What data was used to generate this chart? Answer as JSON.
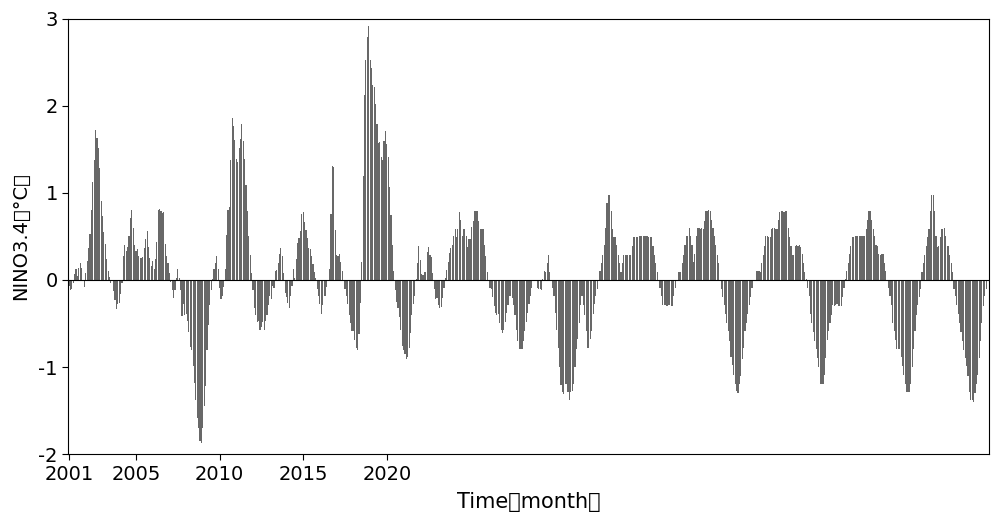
{
  "bar_color": "#686868",
  "ylim": [
    -2,
    3
  ],
  "yticks": [
    -2,
    -1,
    0,
    1,
    2,
    3
  ],
  "xticks": [
    2001,
    2005,
    2010,
    2015,
    2020
  ],
  "xlabel": "Time（month）",
  "ylabel": "NINO3.4（°C）",
  "start_year": 2001,
  "start_month": 1,
  "values": [
    -0.07,
    -0.11,
    -0.1,
    -0.04,
    0.07,
    0.13,
    0.04,
    0.14,
    0.19,
    0.14,
    0.0,
    -0.08,
    0.08,
    0.22,
    0.37,
    0.53,
    0.8,
    1.12,
    1.38,
    1.72,
    1.63,
    1.51,
    1.29,
    0.91,
    0.73,
    0.55,
    0.41,
    0.24,
    0.1,
    0.03,
    -0.03,
    -0.01,
    -0.13,
    -0.23,
    -0.33,
    -0.28,
    -0.27,
    -0.16,
    -0.03,
    0.28,
    0.4,
    0.33,
    0.38,
    0.51,
    0.71,
    0.8,
    0.6,
    0.4,
    0.33,
    0.36,
    0.28,
    0.25,
    0.25,
    0.26,
    0.37,
    0.47,
    0.56,
    0.38,
    0.25,
    0.16,
    0.22,
    0.12,
    0.24,
    0.44,
    0.8,
    0.82,
    0.79,
    0.77,
    0.78,
    0.41,
    0.27,
    0.2,
    0.08,
    -0.02,
    -0.12,
    -0.21,
    -0.11,
    0.02,
    0.12,
    0.02,
    -0.11,
    -0.41,
    -0.28,
    -0.4,
    -0.39,
    -0.47,
    -0.6,
    -0.77,
    -0.8,
    -0.99,
    -1.18,
    -1.38,
    -1.58,
    -1.7,
    -1.85,
    -1.87,
    -1.7,
    -1.45,
    -1.22,
    -0.81,
    -0.52,
    -0.29,
    -0.11,
    0.01,
    0.12,
    0.19,
    0.28,
    0.13,
    -0.09,
    -0.22,
    -0.18,
    -0.08,
    0.12,
    0.52,
    0.8,
    0.84,
    1.38,
    1.86,
    1.77,
    1.61,
    1.39,
    1.35,
    1.51,
    1.62,
    1.79,
    1.6,
    1.39,
    1.09,
    0.79,
    0.51,
    0.29,
    0.08,
    -0.12,
    -0.32,
    -0.4,
    -0.48,
    -0.47,
    -0.58,
    -0.54,
    -0.48,
    -0.58,
    -0.47,
    -0.4,
    -0.29,
    -0.19,
    -0.22,
    -0.07,
    -0.09,
    0.1,
    0.11,
    0.2,
    0.3,
    0.37,
    0.28,
    0.08,
    -0.15,
    -0.2,
    -0.27,
    -0.32,
    -0.19,
    -0.07,
    0.13,
    0.02,
    0.24,
    0.42,
    0.48,
    0.56,
    0.76,
    0.78,
    0.66,
    0.57,
    0.48,
    0.37,
    0.36,
    0.27,
    0.18,
    0.09,
    0.02,
    -0.1,
    -0.18,
    -0.28,
    -0.39,
    -0.29,
    -0.18,
    -0.18,
    -0.08,
    0.0,
    0.12,
    0.76,
    1.31,
    1.3,
    0.57,
    0.29,
    0.28,
    0.3,
    0.21,
    0.1,
    0.0,
    -0.1,
    -0.19,
    -0.28,
    -0.4,
    -0.5,
    -0.59,
    -0.59,
    -0.69,
    -0.78,
    -0.81,
    -0.62,
    -0.27,
    0.21,
    1.19,
    2.12,
    2.52,
    2.79,
    2.91,
    2.53,
    2.43,
    2.24,
    2.21,
    2.02,
    1.79,
    1.57,
    1.58,
    1.41,
    1.38,
    1.6,
    1.71,
    1.56,
    1.41,
    1.07,
    0.74,
    0.4,
    0.1,
    -0.11,
    -0.25,
    -0.32,
    -0.42,
    -0.57,
    -0.76,
    -0.8,
    -0.85,
    -0.91,
    -0.89,
    -0.78,
    -0.61,
    -0.4,
    -0.28,
    -0.19,
    0.01,
    0.2,
    0.39,
    0.23,
    0.07,
    0.06,
    0.09,
    0.09,
    0.32,
    0.38,
    0.29,
    0.26,
    0.08,
    -0.1,
    -0.22,
    -0.21,
    -0.29,
    -0.32,
    -0.31,
    -0.21,
    -0.09,
    0.02,
    0.11,
    0.21,
    0.31,
    0.37,
    0.4,
    0.5,
    0.59,
    0.49,
    0.59,
    0.78,
    0.69,
    0.5,
    0.59,
    0.59,
    0.51,
    0.38,
    0.47,
    0.47,
    0.61,
    0.68,
    0.79,
    0.79,
    0.79,
    0.68,
    0.58,
    0.59,
    0.59,
    0.4,
    0.28,
    0.09,
    0.0,
    -0.09,
    -0.1,
    -0.2,
    -0.3,
    -0.38,
    -0.4,
    -0.39,
    -0.5,
    -0.58,
    -0.61,
    -0.58,
    -0.48,
    -0.38,
    -0.29,
    -0.19,
    -0.19,
    -0.21,
    -0.29,
    -0.4,
    -0.57,
    -0.7,
    -0.79,
    -0.79,
    -0.79,
    -0.7,
    -0.59,
    -0.48,
    -0.38,
    -0.28,
    -0.18,
    -0.09,
    0.0,
    0.0,
    0.0,
    -0.09,
    -0.1,
    -0.1,
    -0.11,
    0.01,
    0.1,
    0.09,
    0.19,
    0.29,
    0.09,
    0.0,
    -0.09,
    -0.19,
    -0.38,
    -0.58,
    -0.78,
    -1.0,
    -1.21,
    -1.29,
    -1.31,
    -1.19,
    -1.19,
    -1.29,
    -1.38,
    -1.29,
    -1.28,
    -1.19,
    -1.0,
    -0.79,
    -0.68,
    -0.5,
    -0.29,
    -0.19,
    -0.29,
    -0.4,
    -0.59,
    -0.78,
    -0.78,
    -0.68,
    -0.59,
    -0.39,
    -0.28,
    -0.19,
    -0.1,
    0.0,
    0.1,
    0.2,
    0.29,
    0.4,
    0.6,
    0.88,
    0.98,
    0.98,
    0.79,
    0.59,
    0.49,
    0.49,
    0.4,
    0.29,
    0.19,
    0.09,
    0.2,
    0.29,
    0.29,
    0.29,
    0.29,
    0.29,
    0.29,
    0.39,
    0.49,
    0.49,
    0.49,
    0.49,
    0.5,
    0.51,
    0.5,
    0.5,
    0.5,
    0.5,
    0.5,
    0.49,
    0.49,
    0.49,
    0.39,
    0.29,
    0.2,
    0.09,
    0.0,
    -0.09,
    -0.19,
    -0.29,
    -0.29,
    -0.29,
    -0.3,
    -0.29,
    -0.29,
    -0.3,
    -0.3,
    -0.19,
    -0.09,
    0.0,
    0.09,
    0.09,
    0.09,
    0.19,
    0.29,
    0.4,
    0.5,
    0.5,
    0.6,
    0.5,
    0.4,
    0.21,
    0.3,
    0.5,
    0.6,
    0.6,
    0.59,
    0.6,
    0.59,
    0.68,
    0.79,
    0.79,
    0.8,
    0.79,
    0.69,
    0.6,
    0.5,
    0.4,
    0.29,
    0.19,
    0.0,
    -0.1,
    -0.2,
    -0.29,
    -0.39,
    -0.5,
    -0.59,
    -0.7,
    -0.89,
    -0.98,
    -1.09,
    -1.19,
    -1.28,
    -1.3,
    -1.2,
    -1.1,
    -0.91,
    -0.78,
    -0.59,
    -0.49,
    -0.39,
    -0.29,
    -0.2,
    -0.09,
    0.0,
    0.0,
    0.1,
    0.1,
    0.1,
    0.09,
    0.19,
    0.29,
    0.39,
    0.5,
    0.5,
    0.49,
    0.49,
    0.59,
    0.6,
    0.6,
    0.59,
    0.59,
    0.69,
    0.78,
    0.79,
    0.79,
    0.78,
    0.79,
    0.79,
    0.6,
    0.49,
    0.39,
    0.29,
    0.29,
    0.39,
    0.4,
    0.39,
    0.4,
    0.38,
    0.3,
    0.19,
    0.09,
    0.01,
    -0.09,
    -0.19,
    -0.39,
    -0.49,
    -0.6,
    -0.7,
    -0.79,
    -0.9,
    -1.0,
    -1.19,
    -1.19,
    -1.19,
    -1.09,
    -0.9,
    -0.69,
    -0.59,
    -0.49,
    -0.4,
    -0.29,
    -0.3,
    -0.29,
    -0.28,
    -0.3,
    -0.3,
    -0.3,
    -0.2,
    -0.09,
    0.01,
    0.1,
    0.19,
    0.3,
    0.39,
    0.49,
    0.49,
    0.5,
    0.5,
    0.51,
    0.5,
    0.5,
    0.51,
    0.51,
    0.51,
    0.59,
    0.69,
    0.79,
    0.79,
    0.69,
    0.59,
    0.5,
    0.4,
    0.39,
    0.3,
    0.29,
    0.3,
    0.3,
    0.19,
    0.1,
    0.0,
    -0.09,
    -0.19,
    -0.29,
    -0.5,
    -0.59,
    -0.69,
    -0.79,
    -0.79,
    -0.79,
    -0.89,
    -0.99,
    -1.09,
    -1.19,
    -1.29,
    -1.29,
    -1.29,
    -1.19,
    -1.0,
    -0.79,
    -0.59,
    -0.4,
    -0.29,
    -0.2,
    -0.1,
    0.09,
    0.19,
    0.29,
    0.39,
    0.49,
    0.59,
    0.79,
    0.98,
    0.98,
    0.79,
    0.5,
    0.38,
    0.39,
    0.49,
    0.59,
    0.59,
    0.6,
    0.5,
    0.39,
    0.39,
    0.29,
    0.19,
    0.09,
    -0.1,
    -0.19,
    -0.29,
    -0.39,
    -0.5,
    -0.6,
    -0.7,
    -0.8,
    -0.9,
    -0.99,
    -1.1,
    -1.29,
    -1.38,
    -1.38,
    -1.4,
    -1.3,
    -1.19,
    -1.09,
    -0.9,
    -0.7,
    -0.49,
    -0.3,
    -0.19,
    -0.1,
    0.0
  ]
}
